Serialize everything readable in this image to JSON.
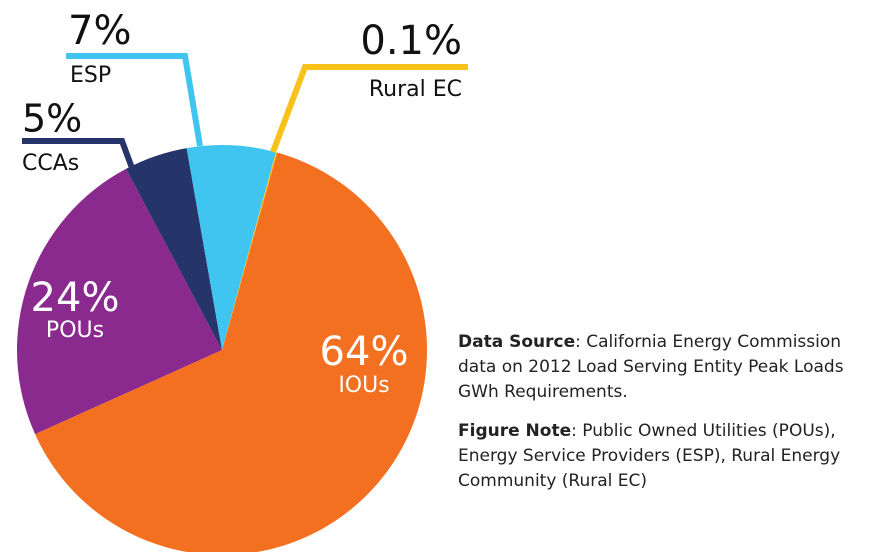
{
  "chart_data": {
    "type": "pie",
    "categories": [
      "IOUs",
      "POUs",
      "CCAs",
      "ESP",
      "Rural EC"
    ],
    "values": [
      64,
      24,
      5,
      7,
      0.1
    ],
    "value_labels": [
      "64%",
      "24%",
      "5%",
      "7%",
      "0.1%"
    ],
    "colors": [
      "#f37021",
      "#8b2a8e",
      "#253469",
      "#40c4f0",
      "#f8c21a"
    ],
    "notes": [
      {
        "label": "Data Source",
        "text": ": California Energy Commission data on 2012 Load Serving Entity Peak Loads GWh Requirements."
      },
      {
        "label": "Figure Note",
        "text": ": Public Owned Utilities (POUs), Energy Service Providers (ESP), Rural Energy Community (Rural EC)"
      }
    ]
  }
}
